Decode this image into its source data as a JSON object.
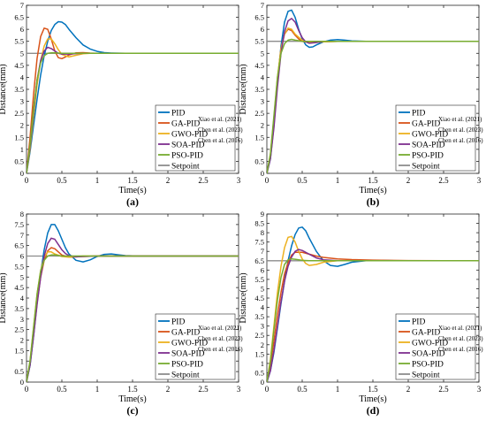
{
  "chart_data": [
    {
      "type": "line",
      "panel_label": "(a)",
      "xlabel": "Time(s)",
      "ylabel": "Distance(mm)",
      "xlim": [
        0,
        3
      ],
      "ylim": [
        0,
        7
      ],
      "xticks": [
        "0",
        "0.5",
        "1",
        "1.5",
        "2",
        "2.5",
        "3"
      ],
      "yticks": [
        "0",
        "0.5",
        "1",
        "1.5",
        "2",
        "2.5",
        "3",
        "3.5",
        "4",
        "4.5",
        "5",
        "5.5",
        "6",
        "6.5",
        "7"
      ],
      "setpoint": 5,
      "legend_position": "bottom-right",
      "grid": false,
      "series": [
        {
          "name": "PID",
          "color": "#0072BD",
          "x": [
            0,
            0.05,
            0.1,
            0.15,
            0.2,
            0.25,
            0.3,
            0.35,
            0.4,
            0.45,
            0.5,
            0.55,
            0.6,
            0.7,
            0.8,
            0.9,
            1.0,
            1.1,
            1.2,
            1.4,
            1.6,
            3.0
          ],
          "y": [
            0,
            0.9,
            2.0,
            3.1,
            4.1,
            4.9,
            5.5,
            5.95,
            6.2,
            6.32,
            6.3,
            6.2,
            6.0,
            5.65,
            5.35,
            5.18,
            5.08,
            5.03,
            5.01,
            5.0,
            5.0,
            5.0
          ]
        },
        {
          "name": "GA-PID",
          "citation": "Xiao et al. (2021)",
          "color": "#D95319",
          "x": [
            0,
            0.05,
            0.1,
            0.15,
            0.2,
            0.25,
            0.3,
            0.35,
            0.4,
            0.45,
            0.5,
            0.55,
            0.6,
            0.7,
            0.8,
            0.9,
            1.0,
            1.2,
            3.0
          ],
          "y": [
            0,
            1.5,
            3.3,
            4.8,
            5.7,
            6.05,
            6.0,
            5.6,
            5.1,
            4.82,
            4.78,
            4.85,
            4.93,
            5.02,
            5.03,
            5.01,
            5.0,
            5.0,
            5.0
          ]
        },
        {
          "name": "GWO-PID",
          "citation": "Chen et al. (2023)",
          "color": "#EDB120",
          "x": [
            0,
            0.05,
            0.1,
            0.15,
            0.2,
            0.25,
            0.3,
            0.35,
            0.4,
            0.45,
            0.5,
            0.6,
            0.7,
            0.8,
            0.9,
            1.0,
            1.2,
            3.0
          ],
          "y": [
            0,
            1.0,
            2.4,
            3.7,
            4.7,
            5.3,
            5.6,
            5.6,
            5.4,
            5.15,
            4.95,
            4.85,
            4.92,
            4.98,
            5.0,
            5.0,
            5.0,
            5.0
          ]
        },
        {
          "name": "SOA-PID",
          "citation": "Chen et al. (2016)",
          "color": "#7E2F8E",
          "x": [
            0,
            0.05,
            0.1,
            0.15,
            0.2,
            0.25,
            0.3,
            0.35,
            0.4,
            0.45,
            0.5,
            0.6,
            0.7,
            0.8,
            1.0,
            3.0
          ],
          "y": [
            0,
            1.1,
            2.6,
            3.9,
            4.7,
            5.1,
            5.25,
            5.2,
            5.1,
            5.0,
            4.97,
            4.97,
            4.99,
            5.0,
            5.0,
            5.0
          ]
        },
        {
          "name": "PSO-PID",
          "color": "#77AC30",
          "x": [
            0,
            0.05,
            0.1,
            0.15,
            0.2,
            0.25,
            0.3,
            0.35,
            0.4,
            0.5,
            0.6,
            0.8,
            1.0,
            3.0
          ],
          "y": [
            0,
            1.2,
            2.7,
            3.9,
            4.6,
            4.9,
            5.0,
            5.02,
            5.02,
            5.0,
            5.0,
            5.0,
            5.0,
            5.0
          ]
        },
        {
          "name": "Setpoint",
          "color": "#8C8C8C",
          "x": [
            0,
            3
          ],
          "y": [
            5,
            5
          ]
        }
      ]
    },
    {
      "type": "line",
      "panel_label": "(b)",
      "xlabel": "Time(s)",
      "ylabel": "Distance(mm)",
      "xlim": [
        0,
        3
      ],
      "ylim": [
        0,
        7
      ],
      "xticks": [
        "0",
        "0.5",
        "1",
        "1.5",
        "2",
        "2.5",
        "3"
      ],
      "yticks": [
        "0",
        "0.5",
        "1",
        "1.5",
        "2",
        "2.5",
        "3",
        "3.5",
        "4",
        "4.5",
        "5",
        "5.5",
        "6",
        "6.5",
        "7"
      ],
      "setpoint": 5.5,
      "legend_position": "bottom-right",
      "grid": false,
      "series": [
        {
          "name": "PID",
          "color": "#0072BD",
          "x": [
            0,
            0.05,
            0.1,
            0.15,
            0.2,
            0.25,
            0.3,
            0.35,
            0.4,
            0.45,
            0.5,
            0.55,
            0.6,
            0.65,
            0.7,
            0.8,
            0.9,
            1.0,
            1.1,
            1.2,
            1.4,
            1.6,
            3.0
          ],
          "y": [
            0,
            0.6,
            2.0,
            3.8,
            5.3,
            6.3,
            6.75,
            6.8,
            6.5,
            6.0,
            5.6,
            5.35,
            5.25,
            5.27,
            5.35,
            5.48,
            5.55,
            5.57,
            5.55,
            5.52,
            5.5,
            5.5,
            5.5
          ]
        },
        {
          "name": "GA-PID",
          "citation": "Xiao et al. (2021)",
          "color": "#D95319",
          "x": [
            0,
            0.05,
            0.1,
            0.15,
            0.2,
            0.25,
            0.3,
            0.35,
            0.4,
            0.45,
            0.5,
            0.6,
            0.8,
            1.0,
            3.0
          ],
          "y": [
            0,
            0.7,
            2.2,
            3.9,
            5.2,
            5.8,
            6.0,
            5.95,
            5.75,
            5.6,
            5.5,
            5.45,
            5.48,
            5.5,
            5.5
          ]
        },
        {
          "name": "GWO-PID",
          "citation": "Chen et al. (2023)",
          "color": "#EDB120",
          "x": [
            0,
            0.05,
            0.1,
            0.15,
            0.2,
            0.25,
            0.3,
            0.35,
            0.4,
            0.5,
            0.6,
            0.8,
            1.0,
            3.0
          ],
          "y": [
            0,
            0.8,
            2.3,
            4.0,
            5.2,
            5.8,
            6.05,
            6.0,
            5.8,
            5.55,
            5.45,
            5.48,
            5.5,
            5.5
          ]
        },
        {
          "name": "SOA-PID",
          "citation": "Chen et al. (2016)",
          "color": "#7E2F8E",
          "x": [
            0,
            0.05,
            0.1,
            0.15,
            0.2,
            0.25,
            0.3,
            0.35,
            0.4,
            0.45,
            0.5,
            0.55,
            0.6,
            0.7,
            0.8,
            1.0,
            3.0
          ],
          "y": [
            0,
            0.6,
            1.9,
            3.6,
            5.0,
            5.9,
            6.35,
            6.45,
            6.3,
            5.95,
            5.65,
            5.48,
            5.42,
            5.45,
            5.5,
            5.5,
            5.5
          ]
        },
        {
          "name": "PSO-PID",
          "color": "#77AC30",
          "x": [
            0,
            0.05,
            0.1,
            0.15,
            0.2,
            0.25,
            0.3,
            0.35,
            0.4,
            0.5,
            0.7,
            1.0,
            3.0
          ],
          "y": [
            0,
            0.8,
            2.4,
            4.0,
            5.0,
            5.4,
            5.55,
            5.58,
            5.55,
            5.5,
            5.5,
            5.5,
            5.5
          ]
        },
        {
          "name": "Setpoint",
          "color": "#8C8C8C",
          "x": [
            0,
            3
          ],
          "y": [
            5.5,
            5.5
          ]
        }
      ]
    },
    {
      "type": "line",
      "panel_label": "(c)",
      "xlabel": "Time(s)",
      "ylabel": "Distance(mm)",
      "xlim": [
        0,
        3
      ],
      "ylim": [
        0,
        8
      ],
      "xticks": [
        "0",
        "0.5",
        "1",
        "1.5",
        "2",
        "2.5",
        "3"
      ],
      "yticks": [
        "0",
        "0.5",
        "1",
        "1.5",
        "2",
        "2.5",
        "3",
        "3.5",
        "4",
        "4.5",
        "5",
        "5.5",
        "6",
        "6.5",
        "7",
        "7.5",
        "8"
      ],
      "setpoint": 6,
      "legend_position": "bottom-right",
      "grid": false,
      "series": [
        {
          "name": "PID",
          "color": "#0072BD",
          "x": [
            0,
            0.05,
            0.1,
            0.15,
            0.2,
            0.25,
            0.3,
            0.35,
            0.4,
            0.45,
            0.5,
            0.55,
            0.6,
            0.7,
            0.8,
            0.9,
            1.0,
            1.1,
            1.2,
            1.3,
            1.4,
            1.6,
            1.8,
            3.0
          ],
          "y": [
            0,
            0.8,
            2.2,
            3.8,
            5.2,
            6.3,
            7.1,
            7.5,
            7.5,
            7.2,
            6.8,
            6.4,
            6.1,
            5.8,
            5.72,
            5.82,
            5.98,
            6.08,
            6.1,
            6.06,
            6.02,
            6.0,
            6.0,
            6.0
          ]
        },
        {
          "name": "GA-PID",
          "citation": "Xiao et al. (2021)",
          "color": "#D95319",
          "x": [
            0,
            0.05,
            0.1,
            0.15,
            0.2,
            0.25,
            0.3,
            0.35,
            0.4,
            0.45,
            0.5,
            0.6,
            0.8,
            1.0,
            3.0
          ],
          "y": [
            0,
            0.9,
            2.3,
            3.8,
            5.0,
            5.8,
            6.25,
            6.4,
            6.35,
            6.2,
            6.05,
            5.95,
            5.98,
            6.0,
            6.0
          ]
        },
        {
          "name": "GWO-PID",
          "citation": "Chen et al. (2023)",
          "color": "#EDB120",
          "x": [
            0,
            0.05,
            0.1,
            0.15,
            0.2,
            0.25,
            0.3,
            0.35,
            0.4,
            0.5,
            0.6,
            0.8,
            1.0,
            3.0
          ],
          "y": [
            0,
            1.0,
            2.6,
            4.2,
            5.3,
            5.95,
            6.2,
            6.2,
            6.1,
            5.98,
            5.95,
            6.0,
            6.0,
            6.0
          ]
        },
        {
          "name": "SOA-PID",
          "citation": "Chen et al. (2016)",
          "color": "#7E2F8E",
          "x": [
            0,
            0.05,
            0.1,
            0.15,
            0.2,
            0.25,
            0.3,
            0.35,
            0.4,
            0.45,
            0.5,
            0.55,
            0.6,
            0.7,
            0.8,
            1.0,
            3.0
          ],
          "y": [
            0,
            0.8,
            2.2,
            3.7,
            5.0,
            6.0,
            6.6,
            6.85,
            6.8,
            6.55,
            6.3,
            6.12,
            6.02,
            5.96,
            5.98,
            6.0,
            6.0
          ]
        },
        {
          "name": "PSO-PID",
          "color": "#77AC30",
          "x": [
            0,
            0.05,
            0.1,
            0.15,
            0.2,
            0.25,
            0.3,
            0.35,
            0.4,
            0.5,
            0.7,
            1.0,
            3.0
          ],
          "y": [
            0,
            1.0,
            2.6,
            4.2,
            5.3,
            5.8,
            6.0,
            6.05,
            6.05,
            6.0,
            6.0,
            6.0,
            6.0
          ]
        },
        {
          "name": "Setpoint",
          "color": "#8C8C8C",
          "x": [
            0,
            3
          ],
          "y": [
            6,
            6
          ]
        }
      ]
    },
    {
      "type": "line",
      "panel_label": "(d)",
      "xlabel": "Time(s)",
      "ylabel": "Distance(mm)",
      "xlim": [
        0,
        3
      ],
      "ylim": [
        0,
        9
      ],
      "xticks": [
        "0",
        "0.5",
        "1",
        "1.5",
        "2",
        "2.5",
        "3"
      ],
      "yticks": [
        "0",
        "0.5",
        "1",
        "1.5",
        "2",
        "2.5",
        "3",
        "3.5",
        "4",
        "4.5",
        "5",
        "5.5",
        "6",
        "6.5",
        "7",
        "7.5",
        "8",
        "8.5",
        "9"
      ],
      "setpoint": 6.5,
      "legend_position": "bottom-right",
      "grid": false,
      "series": [
        {
          "name": "PID",
          "color": "#0072BD",
          "x": [
            0,
            0.05,
            0.1,
            0.15,
            0.2,
            0.25,
            0.3,
            0.35,
            0.4,
            0.45,
            0.5,
            0.55,
            0.6,
            0.7,
            0.8,
            0.9,
            1.0,
            1.1,
            1.2,
            1.4,
            1.6,
            1.8,
            3.0
          ],
          "y": [
            0,
            0.6,
            1.6,
            2.9,
            4.2,
            5.4,
            6.5,
            7.3,
            7.9,
            8.25,
            8.3,
            8.1,
            7.7,
            7.0,
            6.5,
            6.25,
            6.2,
            6.3,
            6.42,
            6.5,
            6.52,
            6.5,
            6.5
          ]
        },
        {
          "name": "GA-PID",
          "citation": "Xiao et al. (2021)",
          "color": "#D95319",
          "x": [
            0,
            0.05,
            0.1,
            0.15,
            0.2,
            0.25,
            0.3,
            0.35,
            0.4,
            0.5,
            0.6,
            0.7,
            0.8,
            1.0,
            1.2,
            1.5,
            2.0,
            2.5,
            3.0
          ],
          "y": [
            0,
            0.9,
            2.2,
            3.6,
            4.8,
            5.8,
            6.4,
            6.8,
            6.95,
            6.95,
            6.85,
            6.75,
            6.68,
            6.6,
            6.56,
            6.53,
            6.51,
            6.5,
            6.5
          ]
        },
        {
          "name": "GWO-PID",
          "citation": "Chen et al. (2023)",
          "color": "#EDB120",
          "x": [
            0,
            0.05,
            0.1,
            0.15,
            0.2,
            0.25,
            0.3,
            0.35,
            0.4,
            0.45,
            0.5,
            0.55,
            0.6,
            0.7,
            0.8,
            1.0,
            3.0
          ],
          "y": [
            0,
            1.2,
            3.0,
            4.8,
            6.2,
            7.2,
            7.75,
            7.8,
            7.5,
            7.0,
            6.6,
            6.35,
            6.25,
            6.3,
            6.42,
            6.5,
            6.5
          ]
        },
        {
          "name": "SOA-PID",
          "citation": "Chen et al. (2016)",
          "color": "#7E2F8E",
          "x": [
            0,
            0.05,
            0.1,
            0.15,
            0.2,
            0.25,
            0.3,
            0.35,
            0.4,
            0.45,
            0.5,
            0.6,
            0.7,
            0.8,
            1.0,
            1.2,
            3.0
          ],
          "y": [
            0,
            0.6,
            1.7,
            3.0,
            4.3,
            5.4,
            6.2,
            6.7,
            7.0,
            7.1,
            7.05,
            6.85,
            6.65,
            6.55,
            6.5,
            6.5,
            6.5
          ]
        },
        {
          "name": "PSO-PID",
          "color": "#77AC30",
          "x": [
            0,
            0.05,
            0.1,
            0.15,
            0.2,
            0.25,
            0.3,
            0.35,
            0.4,
            0.5,
            0.6,
            0.8,
            1.0,
            3.0
          ],
          "y": [
            0,
            1.1,
            2.8,
            4.4,
            5.6,
            6.3,
            6.55,
            6.6,
            6.58,
            6.52,
            6.5,
            6.5,
            6.5,
            6.5
          ]
        },
        {
          "name": "Setpoint",
          "color": "#8C8C8C",
          "x": [
            0,
            3
          ],
          "y": [
            6.5,
            6.5
          ]
        }
      ]
    }
  ]
}
